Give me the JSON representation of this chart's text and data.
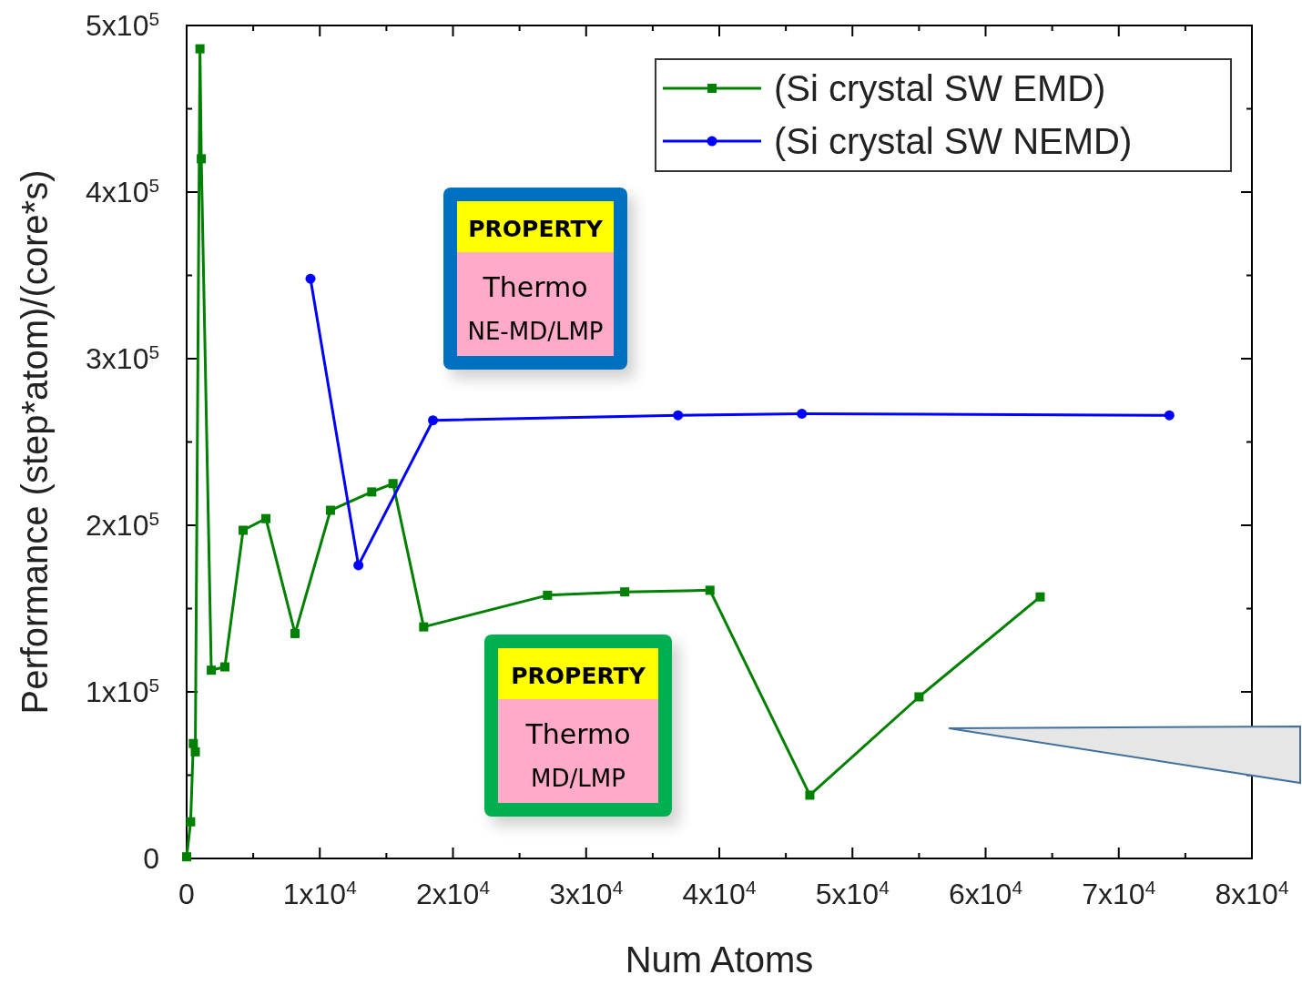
{
  "chart_data": {
    "type": "line",
    "xlabel": "Num Atoms",
    "ylabel": "Performance (step*atom)/(core*s)",
    "xlim": [
      0,
      80000
    ],
    "ylim": [
      0,
      500000
    ],
    "xticks": [
      0,
      {
        "value": 10000,
        "label": "1x10$^{4}$"
      },
      {
        "value": 20000,
        "label": "2x10$^{4}$"
      },
      {
        "value": 30000,
        "label": "3x10$^{4}$"
      },
      {
        "value": 40000,
        "label": "4x10$^{4}$"
      },
      {
        "value": 50000,
        "label": "5x10$^{4}$"
      },
      {
        "value": 60000,
        "label": "6x10$^{4}$"
      },
      {
        "value": 70000,
        "label": "7x10$^{4}$"
      },
      {
        "value": 80000,
        "label": "8x10$^{4}$"
      }
    ],
    "yticks": [
      0,
      {
        "value": 100000,
        "label": "1x10$^{5}$"
      },
      {
        "value": 200000,
        "label": "2x10$^{5}$"
      },
      {
        "value": 300000,
        "label": "3x10$^{5}$"
      },
      {
        "value": 400000,
        "label": "4x10$^{5}$"
      },
      {
        "value": 500000,
        "label": "5x10$^{5}$"
      }
    ],
    "legend": "top right",
    "grid": false,
    "series": [
      {
        "name": "(Si crystal SW EMD)",
        "color": "#008000",
        "marker": "square",
        "x": [
          0,
          300,
          500,
          650,
          1000,
          1100,
          1850,
          2870,
          4240,
          5950,
          8140,
          10800,
          13900,
          15500,
          17800,
          27100,
          32900,
          39300,
          46800,
          55000,
          64100
        ],
        "values": [
          1000,
          22000,
          69000,
          64000,
          486000,
          420000,
          113000,
          115000,
          197000,
          204000,
          135000,
          209000,
          220000,
          225000,
          139000,
          158000,
          160000,
          161000,
          38000,
          97000,
          157000
        ]
      },
      {
        "name": "(Si crystal SW NEMD)",
        "color": "#0000ff",
        "marker": "circle",
        "x": [
          9300,
          12900,
          18500,
          36900,
          46200,
          73800
        ],
        "values": [
          348000,
          176000,
          263000,
          266000,
          267000,
          266000
        ]
      }
    ],
    "annotations": [
      "PROPERTY",
      "Thermo",
      "NE-MD/LMP",
      "PROPERTY",
      "Thermo",
      "MD/LMP"
    ]
  }
}
